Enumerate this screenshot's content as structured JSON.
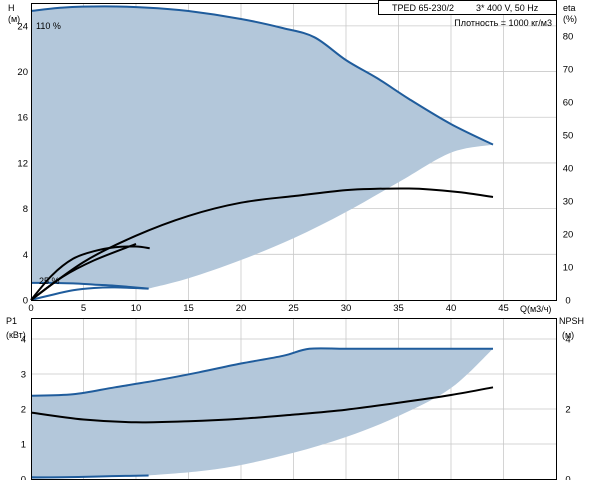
{
  "header": {
    "model": "TPED 65-230/2",
    "supply": "3* 400 V, 50 Hz",
    "density": "Плотность = 1000 кг/м3"
  },
  "axes": {
    "top_left_label": "H",
    "top_left_unit": "(м)",
    "top_right_label": "eta",
    "top_right_unit": "(%)",
    "x_label": "Q(м3/ч)",
    "bottom_left_label": "P1",
    "bottom_left_unit": "(кВт)",
    "bottom_right_label": "NPSH",
    "bottom_right_unit": "(м)"
  },
  "annotations": {
    "max_speed": "110 %",
    "min_speed": "25 %"
  },
  "colors": {
    "curve_blue": "#1f5c9c",
    "range_fill": "#b3c7da",
    "eta_curve": "#000000",
    "grid": "#c9c9c9"
  },
  "chart_data": [
    {
      "type": "line",
      "title": "",
      "xlabel": "Q(м3/ч)",
      "ylabel": "H (м)",
      "y2label": "eta (%)",
      "xlim": [
        0,
        50
      ],
      "ylim": [
        0,
        26
      ],
      "y2lim": [
        0,
        90
      ],
      "x_ticks": [
        0,
        5,
        10,
        15,
        20,
        25,
        30,
        35,
        40,
        45
      ],
      "y_ticks": [
        0,
        4,
        8,
        12,
        16,
        20,
        24
      ],
      "y2_ticks": [
        0,
        10,
        20,
        30,
        40,
        50,
        60,
        70,
        80
      ],
      "grid": true,
      "series": [
        {
          "name": "110 %",
          "axis": "H",
          "x": [
            0,
            3,
            7,
            11,
            15,
            20,
            24,
            27,
            30,
            33,
            36,
            40,
            44
          ],
          "values": [
            25.3,
            25.6,
            25.7,
            25.6,
            25.3,
            24.6,
            23.8,
            23.0,
            21.0,
            19.4,
            17.6,
            15.4,
            13.6
          ]
        },
        {
          "name": "25 %",
          "axis": "H",
          "x": [
            0,
            2,
            4,
            6,
            8,
            11.2
          ],
          "values": [
            1.5,
            1.5,
            1.45,
            1.35,
            1.25,
            1.0
          ]
        },
        {
          "name": "",
          "axis": "H",
          "x": [
            11.2,
            15,
            20,
            25,
            30,
            35,
            40,
            44
          ],
          "values": [
            1.0,
            1.9,
            3.5,
            5.4,
            7.7,
            10.3,
            12.9,
            13.6
          ]
        },
        {
          "name": "",
          "axis": "H",
          "x": [
            0,
            2,
            4,
            6,
            8,
            11.2
          ],
          "values": [
            0,
            0.45,
            0.85,
            1.05,
            1.1,
            1.0
          ]
        },
        {
          "name": "",
          "axis": "eta",
          "x": [
            0,
            5,
            10,
            15,
            20,
            25,
            30,
            33,
            36,
            38,
            41,
            44
          ],
          "values": [
            0,
            11.5,
            19.5,
            25.5,
            29.5,
            31.5,
            33.3,
            33.7,
            33.8,
            33.5,
            32.6,
            31.2
          ]
        },
        {
          "name": "",
          "axis": "eta",
          "x": [
            0,
            2,
            4,
            6,
            8,
            10,
            11.3
          ],
          "values": [
            0,
            7.5,
            12.5,
            14.8,
            16.0,
            16.2,
            15.7
          ]
        },
        {
          "name": "",
          "axis": "eta",
          "x": [
            0,
            3,
            6,
            10
          ],
          "values": [
            0,
            7,
            12,
            17
          ]
        }
      ]
    },
    {
      "type": "line",
      "title": "",
      "xlabel": "",
      "ylabel": "P1 (кВт)",
      "y2label": "NPSH (м)",
      "xlim": [
        0,
        50
      ],
      "ylim": [
        0,
        4.6
      ],
      "y2lim": [
        0,
        4.6
      ],
      "y_ticks": [
        0,
        1,
        2,
        3,
        4
      ],
      "y2_ticks": [
        0,
        2,
        4
      ],
      "grid": true,
      "series": [
        {
          "name": "",
          "axis": "P1",
          "x": [
            0,
            4,
            8,
            12,
            16,
            20,
            24,
            26.5,
            30,
            35,
            40,
            44
          ],
          "values": [
            2.38,
            2.42,
            2.62,
            2.82,
            3.05,
            3.3,
            3.52,
            3.72,
            3.72,
            3.72,
            3.72,
            3.72
          ]
        },
        {
          "name": "",
          "axis": "P1",
          "x": [
            0,
            3,
            6,
            9,
            11.2
          ],
          "values": [
            0.05,
            0.05,
            0.07,
            0.09,
            0.1
          ]
        },
        {
          "name": "",
          "axis": "P1",
          "x": [
            11.2,
            16,
            20,
            25,
            30,
            35,
            40,
            44
          ],
          "values": [
            0.1,
            0.22,
            0.4,
            0.75,
            1.2,
            1.8,
            2.6,
            3.72
          ]
        },
        {
          "name": "",
          "axis": "NPSH",
          "x": [
            0,
            5,
            10,
            15,
            20,
            25,
            30,
            35,
            40,
            44
          ],
          "values": [
            1.9,
            1.7,
            1.62,
            1.65,
            1.72,
            1.84,
            1.98,
            2.18,
            2.4,
            2.62
          ]
        }
      ]
    }
  ]
}
